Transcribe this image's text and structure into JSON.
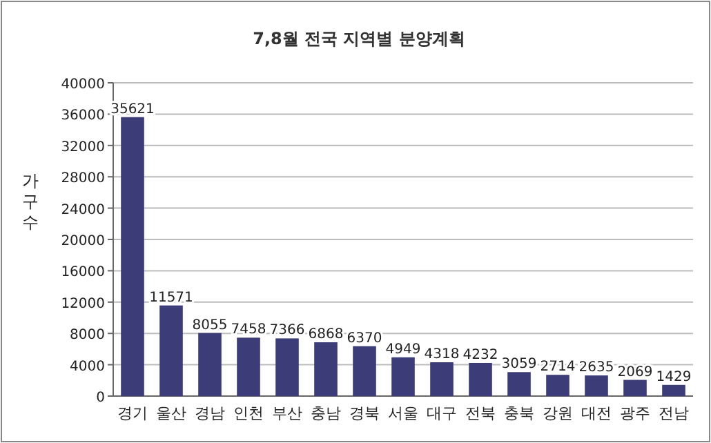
{
  "chart_data": {
    "type": "bar",
    "title": "7,8월 전국 지역별 분양계획",
    "ylabel": "가구수",
    "categories": [
      "경기",
      "울산",
      "경남",
      "인천",
      "부산",
      "충남",
      "경북",
      "서울",
      "대구",
      "전북",
      "충북",
      "강원",
      "대전",
      "광주",
      "전남"
    ],
    "values": [
      35621,
      11571,
      8055,
      7458,
      7366,
      6868,
      6370,
      4949,
      4318,
      4232,
      3059,
      2714,
      2635,
      2069,
      1429
    ],
    "color": "#3c3c78",
    "ylim": [
      0,
      40000
    ],
    "yticks": [
      0,
      4000,
      8000,
      12000,
      16000,
      20000,
      24000,
      28000,
      32000,
      36000,
      40000
    ],
    "grid": "y",
    "data_labels": true
  }
}
